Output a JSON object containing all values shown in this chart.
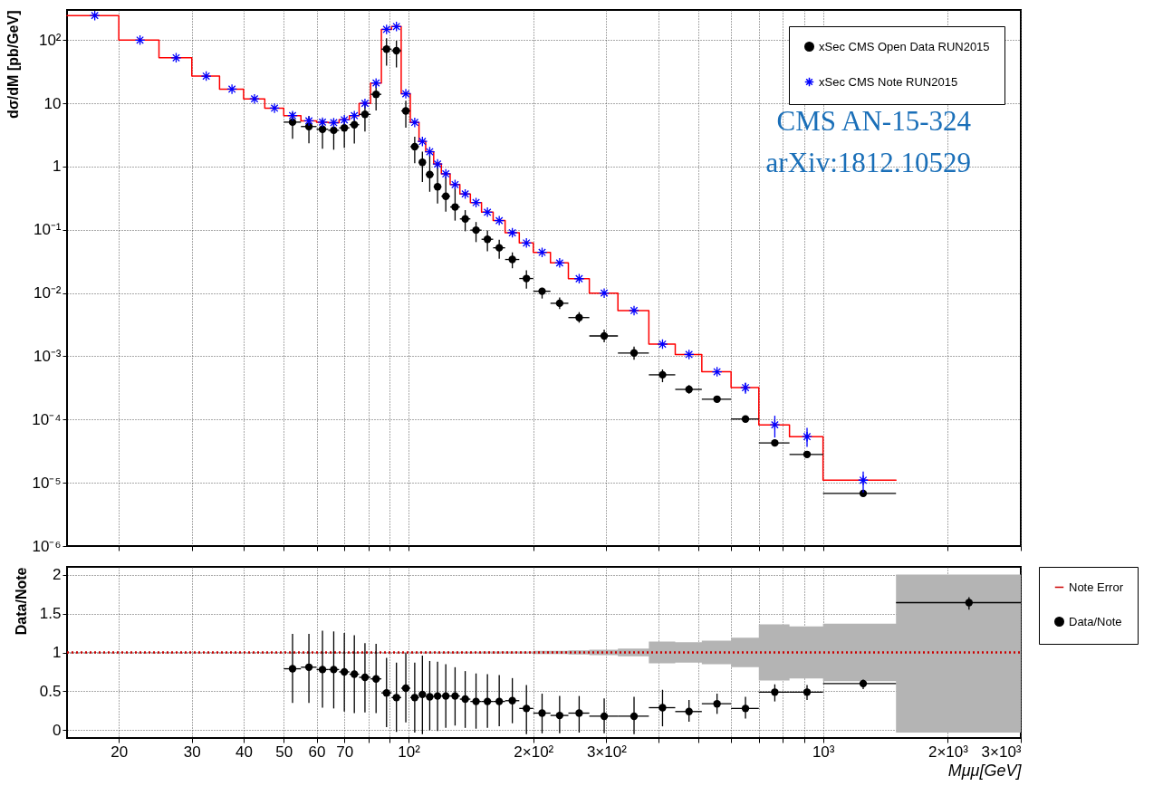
{
  "chart_data": [
    {
      "type": "scatter",
      "ylabel": "dσ/dM  [pb/GeV]",
      "xlim": [
        15,
        3000
      ],
      "ylim": [
        1e-06,
        300
      ],
      "log": "xy",
      "grid": true,
      "legend": "top right",
      "tick_labels": "y",
      "xticks": [
        {
          "value": 20,
          "label": null
        },
        {
          "value": 30,
          "label": null
        },
        {
          "value": 40,
          "label": null
        },
        {
          "value": 50,
          "label": null
        },
        {
          "value": 60,
          "label": null
        },
        {
          "value": 70,
          "label": null
        },
        {
          "value": 80,
          "label": null
        },
        {
          "value": 90,
          "label": null
        },
        {
          "value": 100,
          "label": null
        },
        {
          "value": 200,
          "label": null
        },
        {
          "value": 300,
          "label": null
        },
        {
          "value": 400,
          "label": null
        },
        {
          "value": 500,
          "label": null
        },
        {
          "value": 600,
          "label": null
        },
        {
          "value": 700,
          "label": null
        },
        {
          "value": 800,
          "label": null
        },
        {
          "value": 900,
          "label": null
        },
        {
          "value": 1000,
          "label": null
        },
        {
          "value": 2000,
          "label": null
        },
        {
          "value": 3000,
          "label": null
        }
      ],
      "yticks": [
        {
          "value": 1e-06,
          "label": "10⁻⁶"
        },
        {
          "value": 1e-05,
          "label": "10⁻⁵"
        },
        {
          "value": 0.0001,
          "label": "10⁻⁴"
        },
        {
          "value": 0.001,
          "label": "10⁻³"
        },
        {
          "value": 0.01,
          "label": "10⁻²"
        },
        {
          "value": 0.1,
          "label": "10⁻¹"
        },
        1,
        10,
        {
          "value": 100,
          "label": "10²"
        }
      ],
      "annotations": [
        "CMS AN-15-324",
        "arXiv:1812.10529"
      ],
      "series": [
        {
          "type": "histogram",
          "color": "#ff0000",
          "bins": [
            15,
            20,
            25,
            30,
            35,
            40,
            45,
            50,
            55,
            60,
            64,
            68,
            72,
            76,
            81,
            86,
            91,
            96,
            101,
            106,
            110,
            115,
            120,
            126,
            133,
            141,
            150,
            160,
            171,
            185,
            200,
            220,
            243,
            273,
            320,
            380,
            440,
            510,
            600,
            700,
            830,
            1000,
            1500
          ],
          "values": [
            245,
            100,
            52.6,
            27,
            16.8,
            11.8,
            8.4,
            6.4,
            5.3,
            5.05,
            4.95,
            5.5,
            6.4,
            10,
            21,
            148,
            164,
            14.2,
            5.0,
            2.5,
            1.72,
            1.1,
            0.77,
            0.52,
            0.37,
            0.27,
            0.19,
            0.14,
            0.09,
            0.062,
            0.044,
            0.03,
            0.0169,
            0.01,
            0.0053,
            0.00156,
            0.00107,
            0.00057,
            0.00032,
            8.26e-05,
            5.37e-05,
            1.1e-05
          ]
        },
        {
          "name": "xSec CMS Open Data RUN2015",
          "color": "#000000",
          "marker": "circle",
          "x": [
            52.5,
            57.5,
            62,
            66,
            70,
            74,
            78.5,
            83.5,
            88.5,
            93.5,
            98.5,
            103.5,
            108,
            112.5,
            117.5,
            123,
            129.5,
            137,
            145.5,
            155,
            165.5,
            178,
            192.5,
            210,
            231.5,
            258,
            296.5,
            350,
            410,
            475,
            555,
            650,
            765,
            915,
            1250
          ],
          "values": [
            5.05,
            4.3,
            3.9,
            3.75,
            4.1,
            4.6,
            6.7,
            13.9,
            72,
            68,
            7.6,
            2.07,
            1.17,
            0.75,
            0.48,
            0.34,
            0.23,
            0.149,
            0.099,
            0.071,
            0.052,
            0.034,
            0.017,
            0.0107,
            0.0069,
            0.0041,
            0.0021,
            0.00113,
            0.00051,
            0.0003,
            0.00021,
            0.000102,
            4.27e-05,
            2.81e-05,
            6.8e-06
          ],
          "errors": [
            [
              2.75,
              7.2
            ],
            [
              2.34,
              6.3
            ],
            [
              1.92,
              5.6
            ],
            [
              1.85,
              5.6
            ],
            [
              1.98,
              5.9
            ],
            [
              2.31,
              6.95
            ],
            [
              3.59,
              10
            ],
            [
              7.7,
              21
            ],
            [
              39.6,
              107
            ],
            [
              37,
              98
            ],
            [
              4.14,
              11
            ],
            [
              1.13,
              2.97
            ],
            [
              0.57,
              1.72
            ],
            [
              0.4,
              1.72
            ],
            [
              0.26,
              1.07
            ],
            [
              0.194,
              0.7
            ],
            [
              0.14,
              0.47
            ],
            [
              0.095,
              0.205
            ],
            [
              0.064,
              0.133
            ],
            [
              0.046,
              0.098
            ],
            [
              0.035,
              0.07
            ],
            [
              0.0247,
              0.044
            ],
            [
              0.0118,
              0.0229
            ],
            [
              0.0082,
              0.0121
            ],
            [
              0.0056,
              0.0085
            ],
            [
              0.0034,
              0.005
            ],
            [
              0.00167,
              0.00265
            ],
            [
              0.00088,
              0.00142
            ],
            [
              0.00039,
              0.00062
            ],
            [
              0.000257,
              0.00035
            ],
            [
              0.000188,
              0.000234
            ],
            [
              9.12e-05,
              0.000112
            ],
            [
              4e-05,
              4.55e-05
            ],
            [
              2.64e-05,
              2.98e-05
            ],
            [
              6.4e-06,
              7.2e-06
            ]
          ],
          "xerrors": [
            [
              50,
              55
            ],
            [
              55,
              60
            ],
            [
              60,
              64
            ],
            [
              64,
              68
            ],
            [
              68,
              72
            ],
            [
              72,
              76
            ],
            [
              76,
              81
            ],
            [
              81,
              86
            ],
            [
              86,
              91
            ],
            [
              91,
              96
            ],
            [
              96,
              101
            ],
            [
              101,
              106
            ],
            [
              106,
              110
            ],
            [
              110,
              115
            ],
            [
              115,
              120
            ],
            [
              120,
              126
            ],
            [
              126,
              133
            ],
            [
              133,
              141
            ],
            [
              141,
              150
            ],
            [
              150,
              160
            ],
            [
              160,
              171
            ],
            [
              171,
              185
            ],
            [
              185,
              200
            ],
            [
              200,
              220
            ],
            [
              220,
              243
            ],
            [
              243,
              273
            ],
            [
              273,
              320
            ],
            [
              320,
              380
            ],
            [
              380,
              440
            ],
            [
              440,
              510
            ],
            [
              510,
              600
            ],
            [
              600,
              700
            ],
            [
              700,
              830
            ],
            [
              830,
              1000
            ],
            [
              1000,
              1500
            ]
          ]
        },
        {
          "name": "xSec CMS Note RUN2015",
          "color": "#0000ff",
          "marker": "cross",
          "x": [
            17.5,
            22.5,
            27.5,
            32.5,
            37.5,
            42.5,
            47.5,
            52.5,
            57.5,
            62,
            66,
            70,
            74,
            78.5,
            83.5,
            88.5,
            93.5,
            98.5,
            103.5,
            108,
            112.5,
            117.5,
            123,
            129.5,
            137,
            145.5,
            155,
            165.5,
            178,
            192.5,
            210,
            231.5,
            258,
            296.5,
            350,
            410,
            475,
            555,
            650,
            765,
            915,
            1250
          ],
          "values": [
            245,
            100,
            52.6,
            27,
            16.8,
            11.8,
            8.4,
            6.4,
            5.3,
            5.05,
            4.95,
            5.5,
            6.4,
            10,
            21,
            148,
            164,
            14.2,
            5.0,
            2.5,
            1.72,
            1.1,
            0.77,
            0.52,
            0.37,
            0.27,
            0.19,
            0.14,
            0.09,
            0.062,
            0.044,
            0.03,
            0.0169,
            0.01,
            0.0053,
            0.00156,
            0.00107,
            0.00057,
            0.00032,
            8.26e-05,
            5.37e-05,
            1.1e-05
          ],
          "errors": [
            null,
            null,
            null,
            null,
            null,
            null,
            null,
            null,
            null,
            null,
            null,
            null,
            null,
            null,
            null,
            null,
            null,
            null,
            null,
            null,
            null,
            null,
            null,
            null,
            null,
            null,
            null,
            null,
            null,
            null,
            null,
            null,
            null,
            null,
            null,
            null,
            null,
            null,
            [
              0.000257,
              0.00038
            ],
            [
              5.2e-05,
              0.000115
            ],
            [
              3.69e-05,
              7.38e-05
            ],
            [
              7e-06,
              1.51e-05
            ]
          ]
        }
      ]
    },
    {
      "type": "scatter",
      "xlabel": "Mμμ[GeV]",
      "ylabel": "Data/Note",
      "xlim": [
        15,
        3000
      ],
      "ylim": [
        -0.1,
        2.1
      ],
      "log": "x",
      "grid": true,
      "legend": "right",
      "xticks": [
        20,
        30,
        40,
        50,
        60,
        70,
        {
          "value": 80,
          "label": null
        },
        {
          "value": 90,
          "label": null
        },
        {
          "value": 100,
          "label": "10²"
        },
        {
          "value": 200,
          "label": "2×10²"
        },
        {
          "value": 300,
          "label": "3×10²"
        },
        {
          "value": 400,
          "label": null
        },
        {
          "value": 500,
          "label": null
        },
        {
          "value": 600,
          "label": null
        },
        {
          "value": 700,
          "label": null
        },
        {
          "value": 800,
          "label": null
        },
        {
          "value": 900,
          "label": null
        },
        {
          "value": 1000,
          "label": "10³"
        },
        {
          "value": 2000,
          "label": "2×10³"
        },
        {
          "value": 3000,
          "label": "3×10³"
        }
      ],
      "yticks": [
        0,
        0.5,
        1,
        1.5,
        2
      ],
      "series": [
        {
          "name": "Note Error",
          "type": "line",
          "color": "#cc0000",
          "line_style": "dotted",
          "x": [
            15,
            20,
            20,
            25,
            25,
            30,
            30,
            35,
            35,
            40,
            40,
            45,
            45,
            50,
            50,
            55,
            55,
            60,
            60,
            64,
            64,
            68,
            68,
            72,
            72,
            76,
            76,
            81,
            81,
            86,
            86,
            91,
            91,
            96,
            96,
            101,
            101,
            106,
            106,
            110,
            110,
            115,
            115,
            120,
            120,
            126,
            126,
            133,
            133,
            141,
            141,
            150,
            150,
            160,
            160,
            171,
            171,
            185,
            185,
            200,
            200,
            220,
            220,
            243,
            243,
            273,
            273,
            320,
            320,
            380,
            380,
            440,
            440,
            510,
            510,
            600,
            600,
            700,
            700,
            830,
            830,
            1000,
            1000,
            1500,
            1500,
            3000
          ],
          "values": [
            1,
            1,
            1,
            1,
            1,
            1,
            1,
            1,
            1,
            1,
            1,
            1,
            1,
            1,
            1,
            1,
            1,
            1,
            1,
            1,
            1,
            1,
            1,
            1,
            1,
            1,
            1,
            1,
            1,
            1,
            1,
            1,
            1,
            1,
            1,
            1,
            1,
            1,
            1,
            1,
            1,
            1,
            1,
            1,
            1,
            1,
            1,
            1,
            1,
            1,
            1,
            1,
            1,
            1,
            1,
            1,
            1,
            1,
            1,
            1,
            1,
            1,
            1,
            1,
            1,
            1,
            1,
            1,
            1,
            1,
            1,
            1,
            1,
            1,
            1,
            1,
            1,
            1,
            1,
            1,
            1,
            1,
            1,
            1,
            1,
            1
          ],
          "lower": [
            0.995,
            0.995,
            0.995,
            0.995,
            0.995,
            0.995,
            0.995,
            0.995,
            0.995,
            0.995,
            0.995,
            0.995,
            0.995,
            0.995,
            0.995,
            0.995,
            0.995,
            0.995,
            0.995,
            0.995,
            0.995,
            0.995,
            0.995,
            0.995,
            0.995,
            0.995,
            0.995,
            0.995,
            0.995,
            0.995,
            0.995,
            0.995,
            0.995,
            0.995,
            0.995,
            0.995,
            0.992,
            0.992,
            0.992,
            0.992,
            0.992,
            0.992,
            0.992,
            0.992,
            0.992,
            0.992,
            0.992,
            0.992,
            0.992,
            0.992,
            0.992,
            0.992,
            0.988,
            0.988,
            0.988,
            0.988,
            0.988,
            0.988,
            0.988,
            0.988,
            0.98,
            0.98,
            0.98,
            0.98,
            0.975,
            0.975,
            0.965,
            0.965,
            0.95,
            0.95,
            0.86,
            0.86,
            0.87,
            0.87,
            0.85,
            0.85,
            0.81,
            0.81,
            0.64,
            0.64,
            0.665,
            0.665,
            0.63,
            0.63,
            -0.03,
            -0.03
          ],
          "upper": [
            1.005,
            1.005,
            1.005,
            1.005,
            1.005,
            1.005,
            1.005,
            1.005,
            1.005,
            1.005,
            1.005,
            1.005,
            1.005,
            1.005,
            1.005,
            1.005,
            1.005,
            1.005,
            1.005,
            1.005,
            1.005,
            1.005,
            1.005,
            1.005,
            1.005,
            1.005,
            1.005,
            1.005,
            1.005,
            1.005,
            1.005,
            1.005,
            1.005,
            1.005,
            1.005,
            1.005,
            1.008,
            1.008,
            1.008,
            1.008,
            1.008,
            1.008,
            1.008,
            1.008,
            1.008,
            1.008,
            1.008,
            1.008,
            1.008,
            1.008,
            1.008,
            1.008,
            1.012,
            1.012,
            1.012,
            1.012,
            1.012,
            1.012,
            1.012,
            1.012,
            1.02,
            1.02,
            1.02,
            1.02,
            1.025,
            1.025,
            1.035,
            1.035,
            1.05,
            1.05,
            1.14,
            1.14,
            1.13,
            1.13,
            1.15,
            1.15,
            1.19,
            1.19,
            1.36,
            1.36,
            1.335,
            1.335,
            1.37,
            1.37,
            2.0,
            2.0
          ]
        },
        {
          "name": "Data/Note",
          "color": "#000000",
          "marker": "circle",
          "x": [
            52.5,
            57.5,
            62,
            66,
            70,
            74,
            78.5,
            83.5,
            88.5,
            93.5,
            98.5,
            103.5,
            108,
            112.5,
            117.5,
            123,
            129.5,
            137,
            145.5,
            155,
            165.5,
            178,
            192.5,
            210,
            231.5,
            258,
            296.5,
            350,
            410,
            475,
            555,
            650,
            765,
            915,
            1250,
            2250
          ],
          "values": [
            0.79,
            0.81,
            0.78,
            0.78,
            0.75,
            0.72,
            0.68,
            0.66,
            0.48,
            0.42,
            0.54,
            0.42,
            0.46,
            0.43,
            0.44,
            0.44,
            0.44,
            0.4,
            0.37,
            0.37,
            0.37,
            0.38,
            0.28,
            0.22,
            0.19,
            0.22,
            0.18,
            0.18,
            0.29,
            0.24,
            0.34,
            0.28,
            0.49,
            0.49,
            0.6,
            1.64
          ],
          "errors": [
            [
              0.35,
              1.24
            ],
            [
              0.35,
              1.24
            ],
            [
              0.29,
              1.28
            ],
            [
              0.28,
              1.27
            ],
            [
              0.24,
              1.25
            ],
            [
              0.22,
              1.22
            ],
            [
              0.23,
              1.12
            ],
            [
              0.22,
              1.11
            ],
            [
              0.04,
              0.93
            ],
            [
              -0.02,
              0.87
            ],
            [
              0.1,
              0.99
            ],
            [
              -0.03,
              0.87
            ],
            [
              -0.05,
              0.96
            ],
            [
              0.0,
              0.89
            ],
            [
              -0.01,
              0.88
            ],
            [
              0.03,
              0.85
            ],
            [
              0.06,
              0.81
            ],
            [
              0.03,
              0.76
            ],
            [
              0.02,
              0.73
            ],
            [
              0.03,
              0.72
            ],
            [
              0.05,
              0.71
            ],
            [
              0.09,
              0.67
            ],
            [
              -0.05,
              0.58
            ],
            [
              -0.04,
              0.47
            ],
            [
              -0.04,
              0.44
            ],
            [
              -0.03,
              0.44
            ],
            [
              -0.04,
              0.41
            ],
            [
              -0.05,
              0.43
            ],
            [
              0.05,
              0.52
            ],
            [
              0.11,
              0.39
            ],
            [
              0.21,
              0.47
            ],
            [
              0.15,
              0.43
            ],
            [
              0.37,
              0.59
            ],
            [
              0.39,
              0.58
            ],
            [
              0.53,
              0.65
            ],
            [
              1.55,
              1.71
            ]
          ],
          "xerrors": [
            [
              50,
              55
            ],
            [
              55,
              60
            ],
            [
              60,
              64
            ],
            [
              64,
              68
            ],
            [
              68,
              72
            ],
            [
              72,
              76
            ],
            [
              76,
              81
            ],
            [
              81,
              86
            ],
            [
              86,
              91
            ],
            [
              91,
              96
            ],
            [
              96,
              101
            ],
            [
              101,
              106
            ],
            [
              106,
              110
            ],
            [
              110,
              115
            ],
            [
              115,
              120
            ],
            [
              120,
              126
            ],
            [
              126,
              133
            ],
            [
              133,
              141
            ],
            [
              141,
              150
            ],
            [
              150,
              160
            ],
            [
              160,
              171
            ],
            [
              171,
              185
            ],
            [
              185,
              200
            ],
            [
              200,
              220
            ],
            [
              220,
              243
            ],
            [
              243,
              273
            ],
            [
              273,
              320
            ],
            [
              320,
              380
            ],
            [
              380,
              440
            ],
            [
              440,
              510
            ],
            [
              510,
              600
            ],
            [
              600,
              700
            ],
            [
              700,
              830
            ],
            [
              830,
              1000
            ],
            [
              1000,
              1500
            ],
            [
              1500,
              3000
            ]
          ]
        }
      ]
    }
  ]
}
